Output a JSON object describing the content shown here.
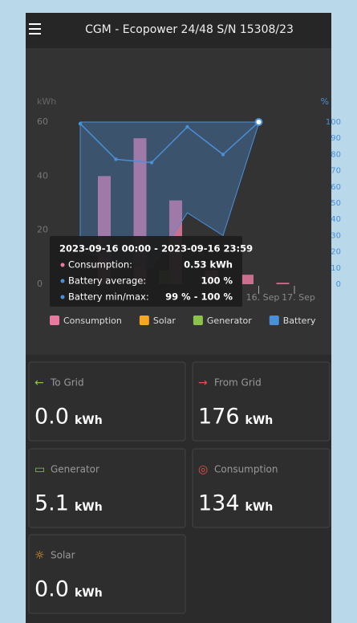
{
  "header": {
    "title": "CGM - Ecopower 24/48 S/N 15308/23"
  },
  "chart_data": {
    "type": "bar",
    "y_label": "kWh",
    "y2_label": "%",
    "categories": [
      null,
      null,
      null,
      null,
      null,
      "16. Sep",
      "17. Sep"
    ],
    "series": [
      {
        "name": "Consumption",
        "color": "#e87aa0",
        "values": [
          40,
          54,
          31,
          5,
          3.5,
          0.53,
          null
        ]
      },
      {
        "name": "Solar",
        "color": "#f5a623",
        "values": [
          0,
          0,
          0,
          0,
          0,
          0,
          null
        ]
      },
      {
        "name": "Generator",
        "color": "#8bc34a",
        "values": [
          0,
          0,
          5.1,
          0,
          0,
          0,
          null
        ]
      },
      {
        "name": "Battery",
        "color": "#4a90d9",
        "axis": "y2",
        "values": [
          99,
          77,
          75,
          97,
          80,
          100,
          null
        ],
        "min": [
          20,
          15,
          10,
          44,
          30,
          99,
          null
        ],
        "max": [
          100,
          100,
          100,
          100,
          100,
          100,
          null
        ]
      }
    ],
    "ylim": [
      0,
      60
    ],
    "yticks": [
      0,
      20,
      40,
      60
    ],
    "y2lim": [
      0,
      100
    ],
    "y2ticks": [
      0,
      10,
      20,
      30,
      40,
      50,
      60,
      70,
      80,
      90,
      100
    ],
    "tooltip": {
      "title": "2023-09-16 00:00 - 2023-09-16 23:59",
      "rows": [
        {
          "label": "Consumption:",
          "value": "0.53 kWh",
          "color": "#e87aa0"
        },
        {
          "label": "Battery average:",
          "value": "100 %",
          "color": "#4a90d9"
        },
        {
          "label": "Battery min/max:",
          "value": "99 % - 100 %",
          "color": "#4a90d9"
        }
      ]
    }
  },
  "cards": [
    {
      "title": "To Grid",
      "value": "0.0",
      "unit": "kWh",
      "icon": "←",
      "icon_color": "#8bc34a"
    },
    {
      "title": "From Grid",
      "value": "176",
      "unit": "kWh",
      "icon": "→",
      "icon_color": "#e8504a"
    },
    {
      "title": "Generator",
      "value": "5.1",
      "unit": "kWh",
      "icon": "▭",
      "icon_color": "#8bc34a"
    },
    {
      "title": "Consumption",
      "value": "134",
      "unit": "kWh",
      "icon": "◎",
      "icon_color": "#e8504a"
    },
    {
      "title": "Solar",
      "value": "0.0",
      "unit": "kWh",
      "icon": "☼",
      "icon_color": "#f5a623"
    }
  ]
}
